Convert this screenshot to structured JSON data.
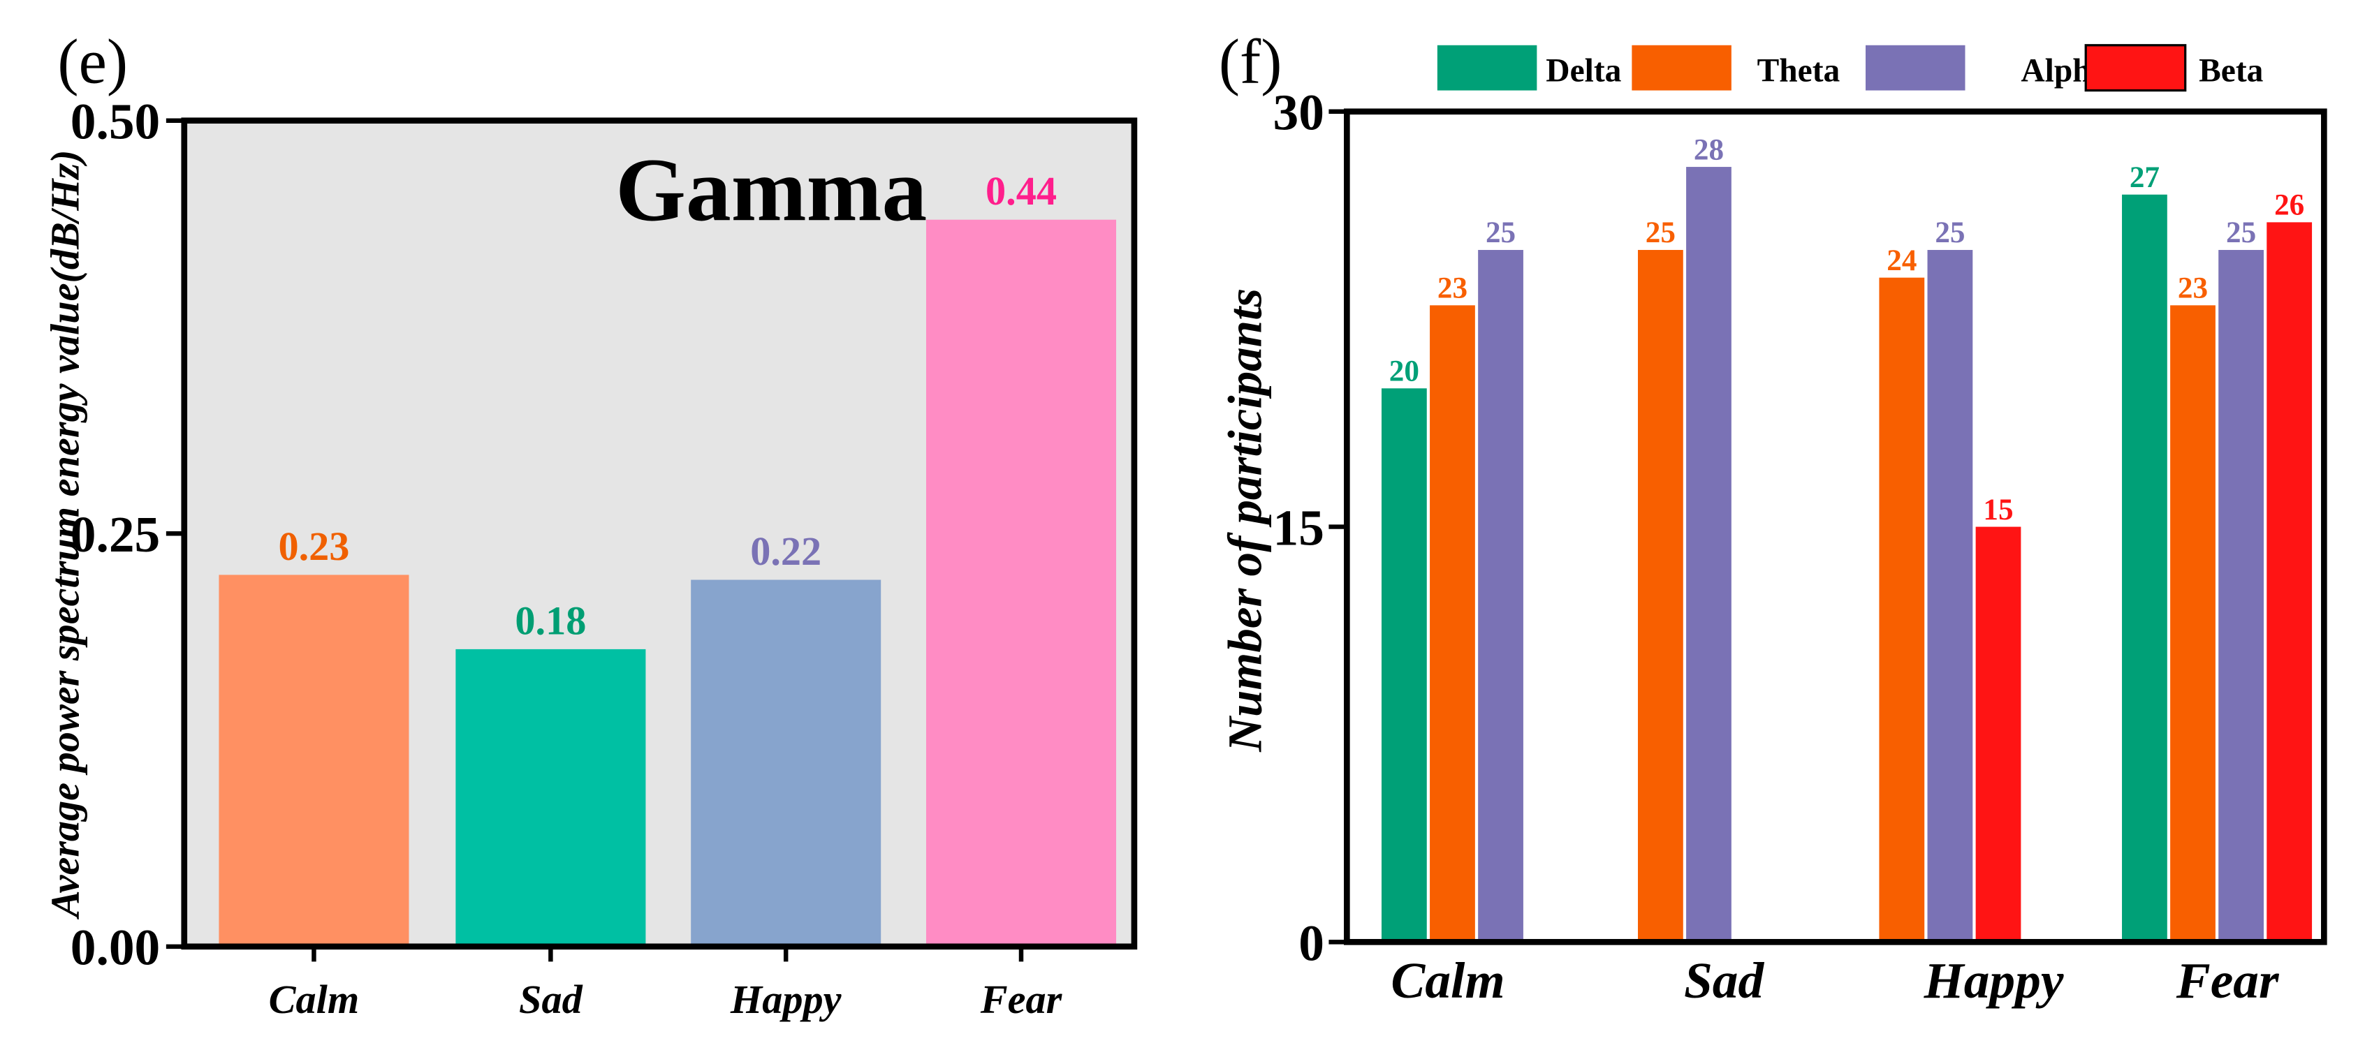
{
  "chart_data": [
    {
      "type": "bar",
      "panel_label": "(e)",
      "title": "Gamma",
      "categories": [
        "Calm",
        "Sad",
        "Happy",
        "Fear"
      ],
      "values": [
        0.225,
        0.18,
        0.222,
        0.44
      ],
      "data_labels": [
        "0.23",
        "0.18",
        "0.22",
        "0.44"
      ],
      "bar_colors": [
        "#ff9062",
        "#00c0a3",
        "#87a4cd",
        "#ff8cc4"
      ],
      "label_colors": [
        "#f06000",
        "#009e73",
        "#7a72b5",
        "#ff1e8c"
      ],
      "xlabel": "",
      "ylabel": "Average power spectrum energy value(dB/Hz)",
      "ylim": [
        0,
        0.5
      ],
      "yticks": [
        "0.00",
        "0.25",
        "0.50"
      ],
      "ytick_values": [
        0,
        0.25,
        0.5
      ],
      "background": "#e5e5e5",
      "grid": false
    },
    {
      "type": "bar",
      "panel_label": "(f)",
      "categories": [
        "Calm",
        "Sad",
        "Happy",
        "Fear"
      ],
      "series": [
        {
          "name": "Delta",
          "color": "#00a077",
          "values": [
            20,
            null,
            null,
            27
          ]
        },
        {
          "name": "Theta",
          "color": "#f85f00",
          "values": [
            23,
            25,
            24,
            23
          ]
        },
        {
          "name": "Alpha",
          "color": "#7a72b5",
          "values": [
            25,
            28,
            25,
            25
          ]
        },
        {
          "name": "Beta",
          "color": "#ff1414",
          "values": [
            null,
            null,
            15,
            26
          ]
        }
      ],
      "xlabel": "",
      "ylabel": "Number of participants",
      "ylim": [
        0,
        30
      ],
      "yticks": [
        "0",
        "15",
        "30"
      ],
      "ytick_values": [
        0,
        15,
        30
      ],
      "legend_position": "top",
      "grid": false
    }
  ]
}
